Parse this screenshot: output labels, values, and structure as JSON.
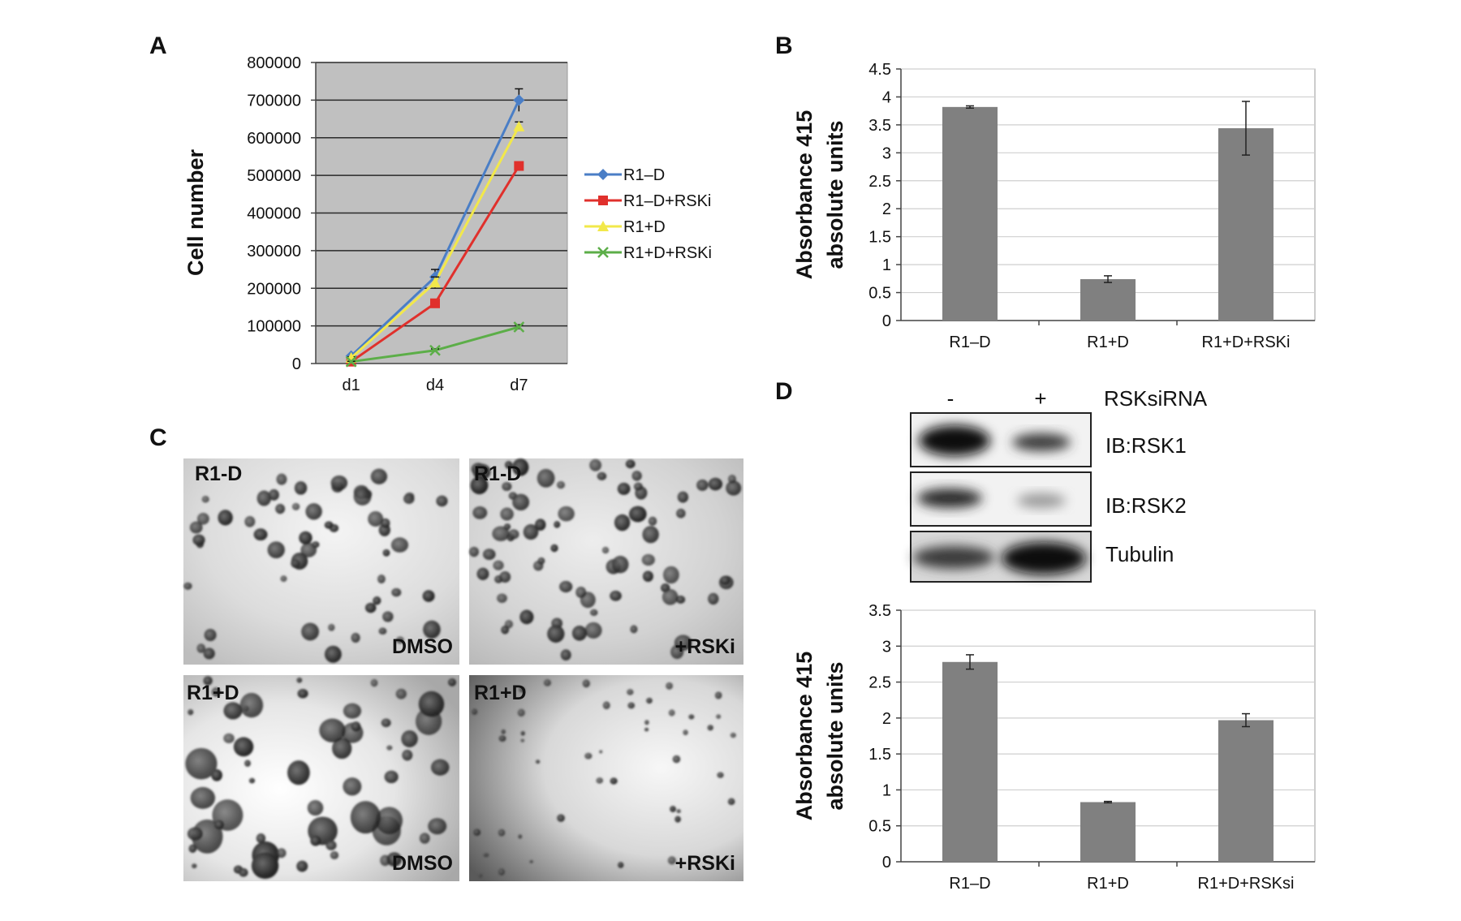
{
  "panels": {
    "A": {
      "letter": "A",
      "chart_data": {
        "type": "line",
        "x": [
          "d1",
          "d4",
          "d7"
        ],
        "ylabel": "Cell number",
        "ylim": [
          0,
          800000
        ],
        "yticks": [
          "0",
          "100000",
          "200000",
          "300000",
          "400000",
          "500000",
          "600000",
          "700000",
          "800000"
        ],
        "grid": true,
        "legend_position": "right",
        "series": [
          {
            "name": "R1–D",
            "color": "#4a7ec6",
            "marker": "diamond",
            "values": [
              20000,
              230000,
              700000
            ],
            "err": [
              3000,
              20000,
              30000
            ]
          },
          {
            "name": "R1–D+RSKi",
            "color": "#e0302c",
            "marker": "square",
            "values": [
              5000,
              160000,
              525000
            ],
            "err": [
              2000,
              10000,
              10000
            ]
          },
          {
            "name": "R1+D",
            "color": "#f2e84a",
            "marker": "triangle",
            "values": [
              15000,
              215000,
              630000
            ],
            "err": [
              3000,
              15000,
              12000
            ]
          },
          {
            "name": "R1+D+RSKi",
            "color": "#5cae48",
            "marker": "x",
            "values": [
              5000,
              35000,
              97000
            ],
            "err": [
              1000,
              4000,
              6000
            ]
          }
        ]
      }
    },
    "B": {
      "letter": "B",
      "chart_data": {
        "type": "bar",
        "categories": [
          "R1–D",
          "R1+D",
          "R1+D+RSKi"
        ],
        "values": [
          3.82,
          0.74,
          3.44
        ],
        "err": [
          0.02,
          0.06,
          0.48
        ],
        "ylabel_line1": "Absorbance 415",
        "ylabel_line2": "absolute units",
        "ylim": [
          0,
          4.5
        ],
        "yticks": [
          "0",
          "0.5",
          "1",
          "1.5",
          "2",
          "2.5",
          "3",
          "3.5",
          "4",
          "4.5"
        ],
        "grid": true,
        "bar_color": "#808080"
      }
    },
    "C": {
      "letter": "C",
      "photos": [
        {
          "top_label": "R1-D",
          "bottom_label": "DMSO"
        },
        {
          "top_label": "R1-D",
          "bottom_label": "+RSKi"
        },
        {
          "top_label": "R1+D",
          "bottom_label": "DMSO"
        },
        {
          "top_label": "R1+D",
          "bottom_label": "+RSKi"
        }
      ]
    },
    "D": {
      "letter": "D",
      "blot": {
        "lane_minus": "-",
        "lane_plus": "+",
        "treatment": "RSKsiRNA",
        "rows": [
          "IB:RSK1",
          "IB:RSK2",
          "Tubulin"
        ]
      },
      "chart_data": {
        "type": "bar",
        "categories": [
          "R1–D",
          "R1+D",
          "R1+D+RSKsi"
        ],
        "values": [
          2.78,
          0.83,
          1.97
        ],
        "err": [
          0.1,
          0.01,
          0.09
        ],
        "ylabel_line1": "Absorbance 415",
        "ylabel_line2": "absolute units",
        "ylim": [
          0,
          3.5
        ],
        "yticks": [
          "0",
          "0.5",
          "1",
          "1.5",
          "2",
          "2.5",
          "3",
          "3.5"
        ],
        "grid": true,
        "bar_color": "#808080"
      }
    }
  }
}
